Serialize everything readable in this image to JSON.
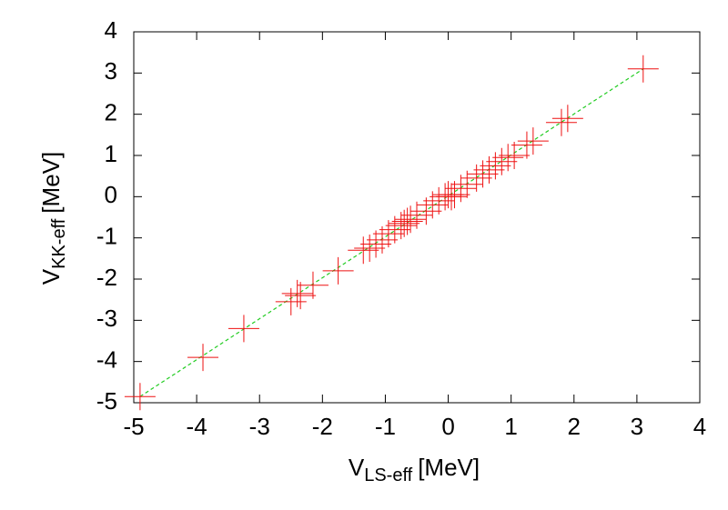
{
  "chart_data": {
    "type": "scatter",
    "xlabel": {
      "main": "V",
      "sub": "LS-eff",
      "unit": "[MeV]"
    },
    "ylabel": {
      "main": "V",
      "sub": "KK-eff",
      "unit": "[MeV]"
    },
    "xlim": [
      -5,
      4
    ],
    "ylim": [
      -5,
      4
    ],
    "xticks": [
      -5,
      -4,
      -3,
      -2,
      -1,
      0,
      1,
      2,
      3,
      4
    ],
    "yticks": [
      -5,
      -4,
      -3,
      -2,
      -1,
      0,
      1,
      2,
      3,
      4
    ],
    "color": "#ee1111",
    "x": [
      -4.9,
      -3.9,
      -3.25,
      -2.5,
      -2.4,
      -2.35,
      -2.15,
      -1.75,
      -1.35,
      -1.25,
      -1.15,
      -1.05,
      -0.95,
      -0.85,
      -0.75,
      -0.7,
      -0.65,
      -0.6,
      -0.5,
      -0.35,
      -0.25,
      -0.15,
      -0.05,
      0,
      0.05,
      0.1,
      0.2,
      0.3,
      0.45,
      0.55,
      0.65,
      0.75,
      0.85,
      0.95,
      1.05,
      1.25,
      1.35,
      1.8,
      1.9,
      3.1
    ],
    "y": [
      -4.85,
      -3.9,
      -3.2,
      -2.55,
      -2.35,
      -2.4,
      -2.15,
      -1.8,
      -1.3,
      -1.25,
      -1.15,
      -1.05,
      -0.9,
      -0.8,
      -0.7,
      -0.65,
      -0.6,
      -0.55,
      -0.45,
      -0.35,
      -0.2,
      -0.1,
      0,
      0.05,
      0,
      0.05,
      0.2,
      0.3,
      0.45,
      0.55,
      0.65,
      0.75,
      0.85,
      0.95,
      1.0,
      1.25,
      1.35,
      1.8,
      1.9,
      3.1
    ],
    "fit_line": {
      "x": [
        -4.9,
        3.1
      ],
      "y": [
        -4.85,
        3.1
      ],
      "color": "#22cc22"
    }
  }
}
